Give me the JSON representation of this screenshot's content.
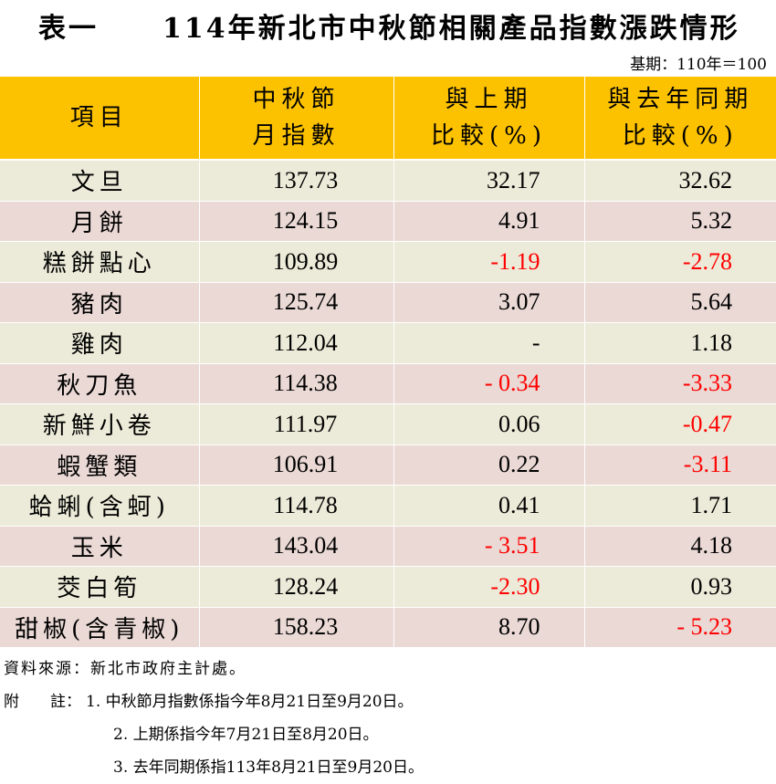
{
  "title": {
    "prefix": "表一",
    "text": "114年新北市中秋節相關產品指數漲跌情形"
  },
  "base_note": "基期：110年＝100",
  "table": {
    "headers": {
      "item": "項目",
      "index_line1": "中秋節",
      "index_line2": "月指數",
      "prev_line1": "與上期",
      "prev_line2": "比較(%)",
      "yoy_line1": "與去年同期",
      "yoy_line2": "比較(%)"
    },
    "rows": [
      {
        "item": "文旦",
        "index": "137.73",
        "prev": "32.17",
        "yoy": "32.62"
      },
      {
        "item": "月餅",
        "index": "124.15",
        "prev": "4.91",
        "yoy": "5.32"
      },
      {
        "item": "糕餅點心",
        "index": "109.89",
        "prev": "-1.19",
        "yoy": "-2.78"
      },
      {
        "item": "豬肉",
        "index": "125.74",
        "prev": "3.07",
        "yoy": "5.64"
      },
      {
        "item": "雞肉",
        "index": "112.04",
        "prev": "-",
        "yoy": "1.18"
      },
      {
        "item": "秋刀魚",
        "index": "114.38",
        "prev": "- 0.34",
        "yoy": "-3.33"
      },
      {
        "item": "新鮮小卷",
        "index": "111.97",
        "prev": "0.06",
        "yoy": "-0.47"
      },
      {
        "item": "蝦蟹類",
        "index": "106.91",
        "prev": "0.22",
        "yoy": "-3.11"
      },
      {
        "item": "蛤蜊(含蚵)",
        "index": "114.78",
        "prev": "0.41",
        "yoy": "1.71"
      },
      {
        "item": "玉米",
        "index": "143.04",
        "prev": "- 3.51",
        "yoy": "4.18"
      },
      {
        "item": "茭白筍",
        "index": "128.24",
        "prev": "-2.30",
        "yoy": "0.93"
      },
      {
        "item": "甜椒(含青椒)",
        "index": "158.23",
        "prev": "8.70",
        "yoy": "- 5.23"
      }
    ]
  },
  "notes": {
    "source": "資料來源：新北市政府主計處。",
    "label": "附　　註：",
    "note1": "1. 中秋節月指數係指今年8月21日至9月20日。",
    "note2": "2. 上期係指今年7月21日至8月20日。",
    "note3": "3. 去年同期係指113年8月21日至9月20日。"
  },
  "colors": {
    "header_bg": "#fcc200",
    "row_odd_bg": "#ecebd9",
    "row_even_bg": "#ead9d5",
    "negative_text": "#ff0000"
  }
}
